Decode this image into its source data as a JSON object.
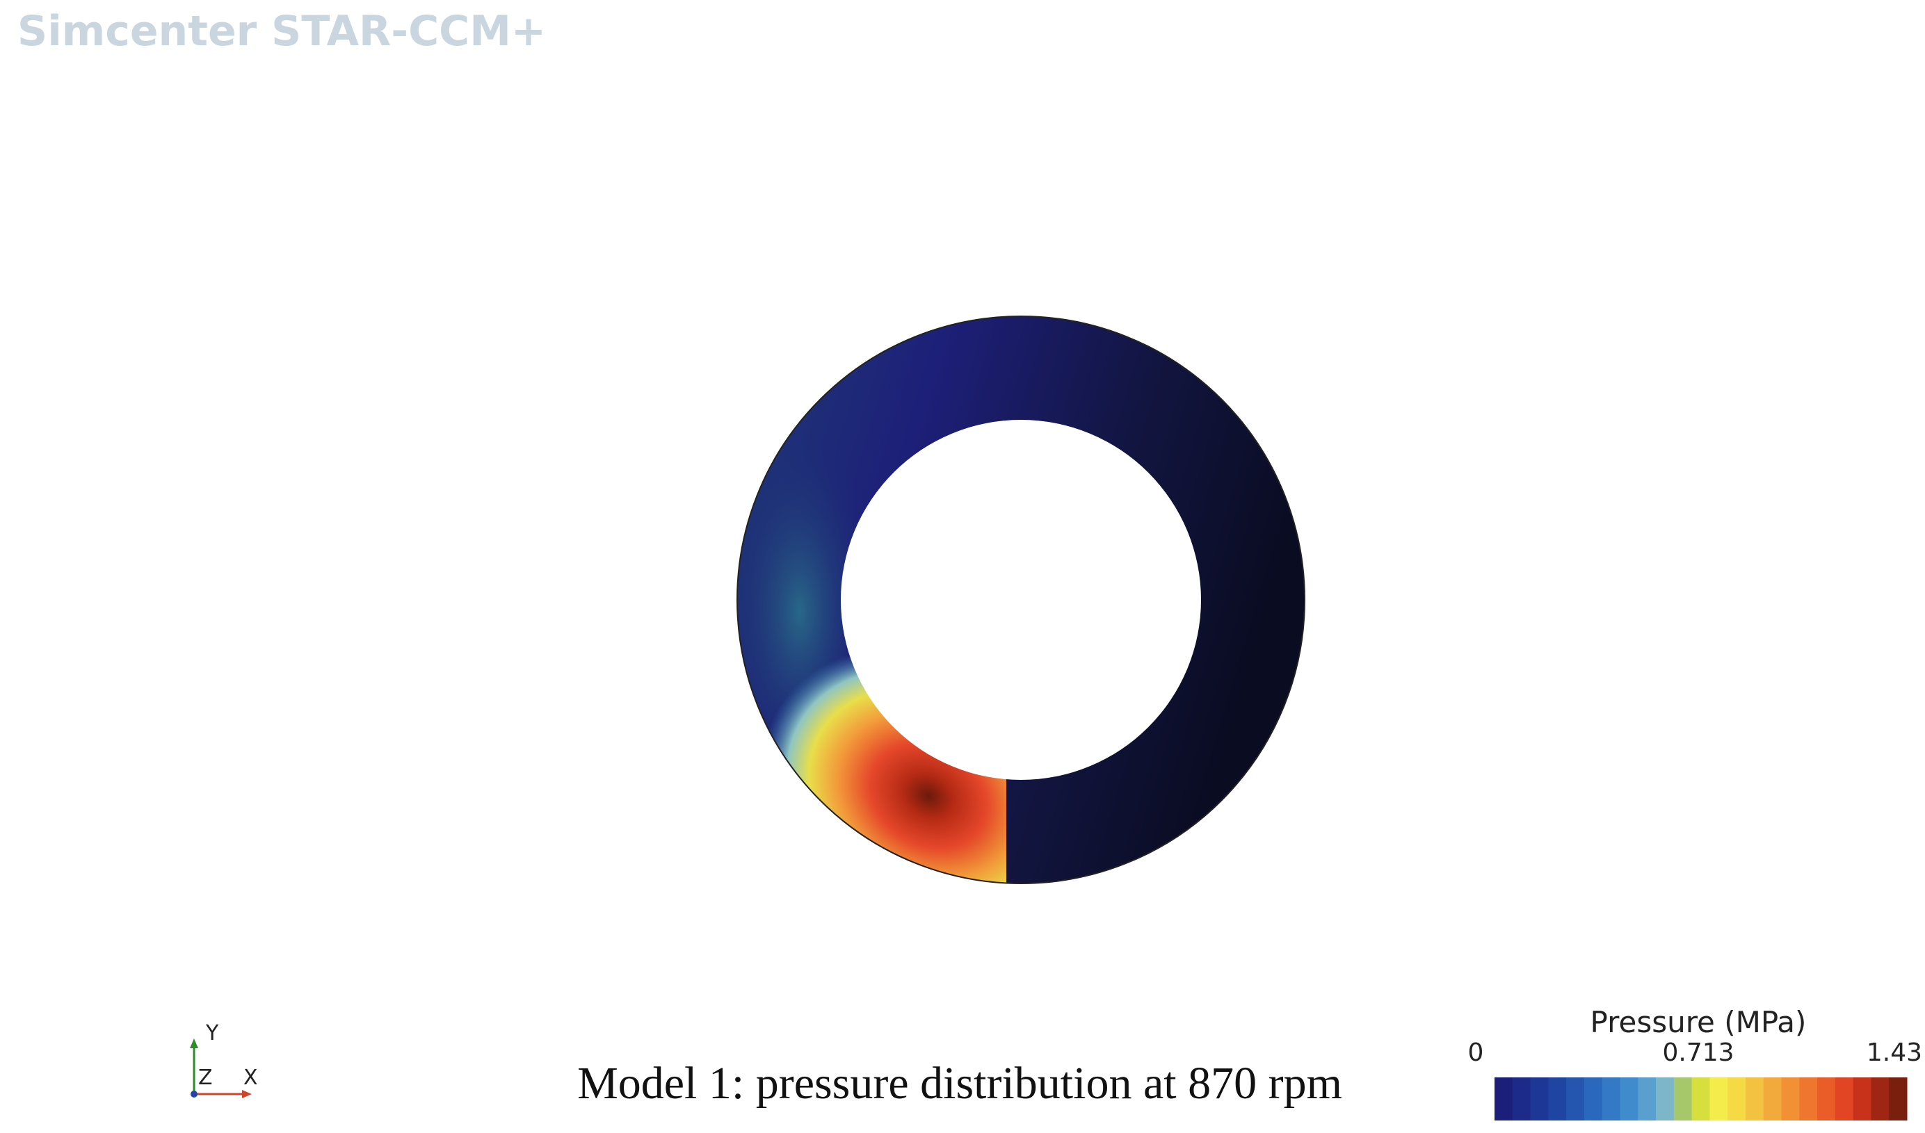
{
  "watermark": "Simcenter STAR-CCM+",
  "caption": "Model 1: pressure distribution at 870 rpm",
  "axes": {
    "y": "Y",
    "z": "Z",
    "x": "X"
  },
  "legend": {
    "title": "Pressure (MPa)",
    "ticks": [
      0,
      0.713,
      1.43
    ]
  }
}
